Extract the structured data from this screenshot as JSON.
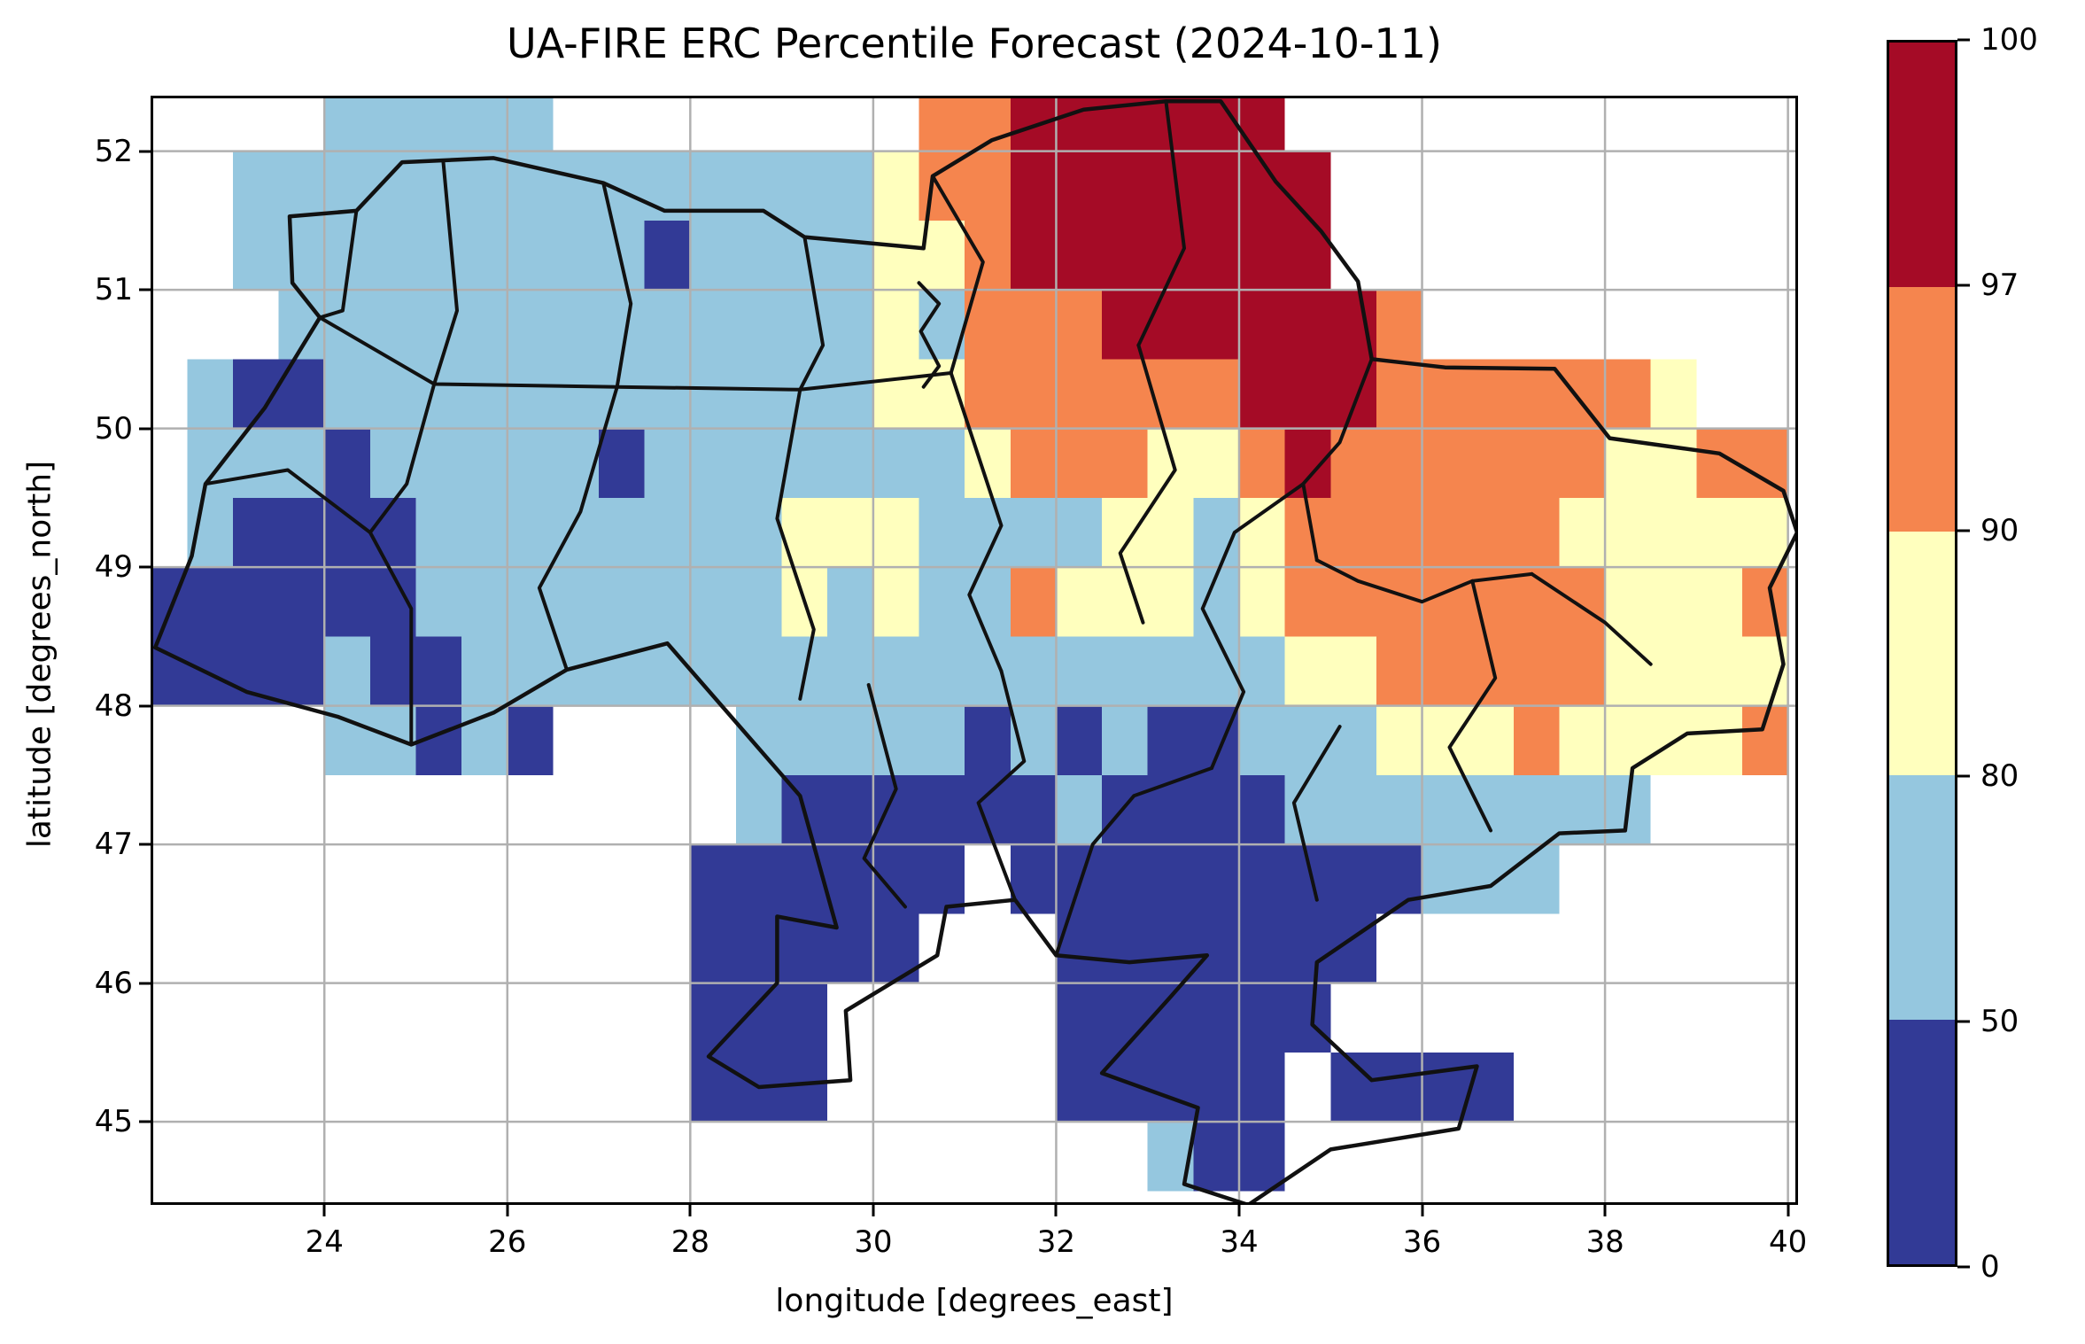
{
  "chart_data": {
    "type": "heatmap",
    "title": "UA-FIRE ERC Percentile Forecast (2024-10-11)",
    "xlabel": "longitude [degrees_east]",
    "ylabel": "latitude [degrees_north]",
    "x_ticks": [
      24,
      26,
      28,
      30,
      32,
      34,
      36,
      38,
      40
    ],
    "y_ticks": [
      45,
      46,
      47,
      48,
      49,
      50,
      51,
      52
    ],
    "lon_range": [
      22.1,
      40.11
    ],
    "lat_range": [
      44.4,
      52.4
    ],
    "grid_on": true,
    "gridline_color": "#b0b0b0",
    "border_color": "#111111",
    "classes": [
      {
        "code": "D",
        "range": "0-50",
        "color": "#323a96"
      },
      {
        "code": "L",
        "range": "50-80",
        "color": "#95c7df"
      },
      {
        "code": "Y",
        "range": "80-90",
        "color": "#ffffbe"
      },
      {
        "code": "O",
        "range": "90-97",
        "color": "#f5854e"
      },
      {
        "code": "R",
        "range": "97-100",
        "color": "#a50b26"
      }
    ],
    "colorbar": {
      "levels": [
        0,
        50,
        80,
        90,
        97,
        100
      ],
      "orientation": "vertical",
      "position": "right"
    },
    "grid": {
      "lon_origin": 22.0,
      "lat_origin": 52.5,
      "cell_deg": 0.5,
      "note": "rows top-to-bottom from lat 52.5; chars left-to-right from lon 22.0; .=no data",
      "rows": [
        "....LLLLL........OORRRRRR...........",
        "..LLLLLLLLLLLLLLYOORRRRRRR..........",
        "..LLLLLLLLLDLLLLYYORRRRRRR..........",
        "...LLLLLLLLLLLLLYLOOORRRRRRO........",
        ".LDDLLLLLLLLLLLLYYOOOOOORRROOOOOOY..",
        ".LLLDLLLLLDLLLLLLLYOOOYYOROOOOOOYYOO",
        ".LDDDDLLLLLLLLYYYLLLLYYLYOOOOOOYYYYY",
        "DDDDDDLLLLLLLLYLYLLOYYYLYOOOOOOOYYYO",
        "DDDDLDDLLLLLLLLLLLLLLLLLLYYOOOOOYYYY",
        "....LLDLD....LLLLLDLDLDDLLLYYYOYYYYO",
        ".............LDDDDDDLDDDDLLLLLLLL...",
        "............DDDDDD.DDDDDDDDDLLL.....",
        "............DDDDD...DDDDDDD.........",
        "............DDD.....DDDDDD..........",
        "............DDD.....DDDDD.DDDD......",
        "......................LDD..........."
      ]
    },
    "borders": {
      "country": [
        [
          23.62,
          51.53
        ],
        [
          24.35,
          51.57
        ],
        [
          24.85,
          51.92
        ],
        [
          25.85,
          51.95
        ],
        [
          27.05,
          51.77
        ],
        [
          27.72,
          51.57
        ],
        [
          28.8,
          51.57
        ],
        [
          29.25,
          51.38
        ],
        [
          30.55,
          51.3
        ],
        [
          30.65,
          51.82
        ],
        [
          31.3,
          52.08
        ],
        [
          32.3,
          52.3
        ],
        [
          33.2,
          52.36
        ],
        [
          33.8,
          52.36
        ],
        [
          34.4,
          51.78
        ],
        [
          34.9,
          51.42
        ],
        [
          35.3,
          51.06
        ],
        [
          35.45,
          50.5
        ],
        [
          36.25,
          50.44
        ],
        [
          37.45,
          50.43
        ],
        [
          38.05,
          49.93
        ],
        [
          39.25,
          49.82
        ],
        [
          39.95,
          49.55
        ],
        [
          40.1,
          49.25
        ],
        [
          39.8,
          48.85
        ],
        [
          39.95,
          48.3
        ],
        [
          39.72,
          47.83
        ],
        [
          38.9,
          47.8
        ],
        [
          38.3,
          47.55
        ],
        [
          38.22,
          47.1
        ],
        [
          37.5,
          47.08
        ],
        [
          36.75,
          46.7
        ],
        [
          35.85,
          46.6
        ],
        [
          34.85,
          46.15
        ],
        [
          34.8,
          45.7
        ],
        [
          35.45,
          45.3
        ],
        [
          36.6,
          45.4
        ],
        [
          36.4,
          44.95
        ],
        [
          35.0,
          44.8
        ],
        [
          34.1,
          44.4
        ],
        [
          33.4,
          44.55
        ],
        [
          33.55,
          45.1
        ],
        [
          32.5,
          45.35
        ],
        [
          33.25,
          45.9
        ],
        [
          33.65,
          46.2
        ],
        [
          32.8,
          46.15
        ],
        [
          32.0,
          46.2
        ],
        [
          31.55,
          46.6
        ],
        [
          30.8,
          46.55
        ],
        [
          30.7,
          46.2
        ],
        [
          29.7,
          45.8
        ],
        [
          29.75,
          45.3
        ],
        [
          28.75,
          45.25
        ],
        [
          28.2,
          45.47
        ],
        [
          28.95,
          46.0
        ],
        [
          28.95,
          46.48
        ],
        [
          29.6,
          46.4
        ],
        [
          29.2,
          47.35
        ],
        [
          27.75,
          48.45
        ],
        [
          26.65,
          48.26
        ],
        [
          25.85,
          47.95
        ],
        [
          24.95,
          47.72
        ],
        [
          24.15,
          47.92
        ],
        [
          23.15,
          48.1
        ],
        [
          22.15,
          48.42
        ],
        [
          22.55,
          49.08
        ],
        [
          22.7,
          49.6
        ],
        [
          23.35,
          50.15
        ],
        [
          23.95,
          50.8
        ],
        [
          23.65,
          51.05
        ],
        [
          23.62,
          51.53
        ]
      ],
      "internal": [
        [
          [
            24.35,
            51.57
          ],
          [
            24.2,
            50.85
          ],
          [
            23.95,
            50.8
          ]
        ],
        [
          [
            25.3,
            51.92
          ],
          [
            25.45,
            50.85
          ],
          [
            25.2,
            50.32
          ]
        ],
        [
          [
            27.05,
            51.77
          ],
          [
            27.35,
            50.9
          ],
          [
            27.2,
            50.3
          ]
        ],
        [
          [
            29.25,
            51.38
          ],
          [
            29.45,
            50.6
          ],
          [
            29.2,
            50.28
          ]
        ],
        [
          [
            30.65,
            51.82
          ],
          [
            31.2,
            51.2
          ],
          [
            30.85,
            50.4
          ]
        ],
        [
          [
            33.2,
            52.36
          ],
          [
            33.4,
            51.3
          ],
          [
            32.9,
            50.6
          ]
        ],
        [
          [
            23.95,
            50.8
          ],
          [
            25.2,
            50.32
          ],
          [
            27.2,
            50.3
          ],
          [
            29.2,
            50.28
          ],
          [
            30.85,
            50.4
          ]
        ],
        [
          [
            30.85,
            50.4
          ],
          [
            31.4,
            49.3
          ],
          [
            31.05,
            48.8
          ],
          [
            31.4,
            48.25
          ]
        ],
        [
          [
            32.9,
            50.6
          ],
          [
            33.3,
            49.7
          ],
          [
            32.7,
            49.1
          ],
          [
            32.95,
            48.6
          ]
        ],
        [
          [
            35.45,
            50.5
          ],
          [
            35.1,
            49.9
          ],
          [
            34.7,
            49.6
          ],
          [
            34.85,
            49.05
          ]
        ],
        [
          [
            34.85,
            49.05
          ],
          [
            35.3,
            48.9
          ],
          [
            36.0,
            48.75
          ],
          [
            36.55,
            48.9
          ],
          [
            37.2,
            48.95
          ]
        ],
        [
          [
            37.2,
            48.95
          ],
          [
            38.0,
            48.6
          ],
          [
            38.5,
            48.3
          ]
        ],
        [
          [
            29.2,
            50.28
          ],
          [
            28.95,
            49.35
          ],
          [
            29.35,
            48.55
          ],
          [
            29.2,
            48.05
          ]
        ],
        [
          [
            27.2,
            50.3
          ],
          [
            26.8,
            49.4
          ],
          [
            26.35,
            48.85
          ],
          [
            26.65,
            48.26
          ]
        ],
        [
          [
            25.2,
            50.32
          ],
          [
            24.9,
            49.6
          ],
          [
            24.5,
            49.25
          ],
          [
            24.95,
            48.7
          ],
          [
            24.95,
            47.72
          ]
        ],
        [
          [
            22.7,
            49.6
          ],
          [
            23.6,
            49.7
          ],
          [
            24.5,
            49.25
          ]
        ],
        [
          [
            34.7,
            49.6
          ],
          [
            33.95,
            49.25
          ],
          [
            33.6,
            48.7
          ],
          [
            34.05,
            48.1
          ],
          [
            33.7,
            47.55
          ]
        ],
        [
          [
            31.4,
            48.25
          ],
          [
            31.65,
            47.6
          ],
          [
            31.15,
            47.3
          ],
          [
            31.55,
            46.6
          ]
        ],
        [
          [
            29.95,
            48.15
          ],
          [
            30.25,
            47.4
          ],
          [
            29.9,
            46.9
          ],
          [
            30.35,
            46.55
          ]
        ],
        [
          [
            33.7,
            47.55
          ],
          [
            32.85,
            47.35
          ],
          [
            32.4,
            47.0
          ],
          [
            32.0,
            46.2
          ]
        ],
        [
          [
            35.1,
            47.85
          ],
          [
            34.6,
            47.3
          ],
          [
            34.85,
            46.6
          ]
        ],
        [
          [
            36.55,
            48.9
          ],
          [
            36.8,
            48.2
          ],
          [
            36.3,
            47.7
          ],
          [
            36.75,
            47.1
          ]
        ],
        [
          [
            30.5,
            51.05
          ],
          [
            30.72,
            50.9
          ],
          [
            30.52,
            50.7
          ],
          [
            30.72,
            50.45
          ],
          [
            30.55,
            50.3
          ]
        ]
      ]
    }
  }
}
